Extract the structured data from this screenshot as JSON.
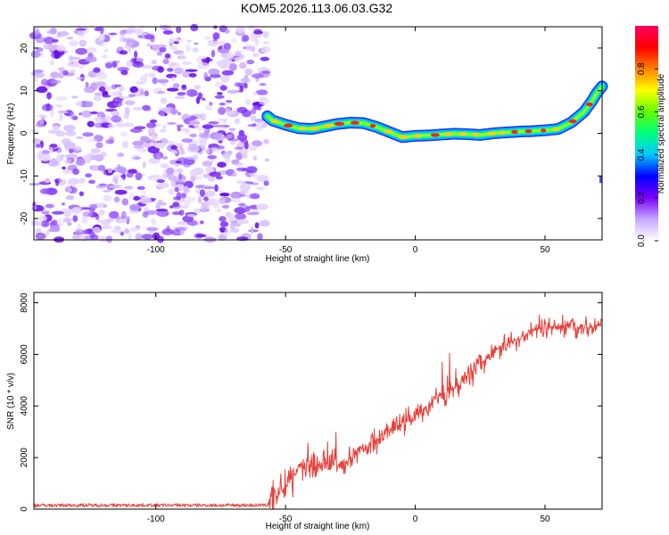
{
  "chart_data": [
    {
      "type": "heatmap",
      "title": "KOM5.2026.113.06.03.G32",
      "xlabel": "Height of straight line (km)",
      "ylabel": "Frequency (Hz)",
      "xlim": [
        -147,
        72
      ],
      "ylim": [
        -25,
        25
      ],
      "xticks": [
        -100,
        -50,
        0,
        50
      ],
      "xtick_labels": [
        "-100",
        "-50",
        "0",
        "50"
      ],
      "yticks": [
        -20,
        -10,
        0,
        10,
        20
      ],
      "ytick_labels": [
        "-20",
        "-10",
        "0",
        "10",
        "20"
      ],
      "noise_region_x": [
        -147,
        -57
      ],
      "ridge": {
        "x": [
          -57,
          -55,
          -50,
          -45,
          -40,
          -35,
          -30,
          -25,
          -20,
          -15,
          -10,
          -5,
          0,
          5,
          10,
          15,
          20,
          25,
          30,
          35,
          40,
          45,
          50,
          55,
          60,
          65,
          68,
          70,
          72
        ],
        "freq": [
          4,
          3,
          2,
          1.2,
          1,
          1.6,
          2.2,
          2.5,
          2.4,
          1.5,
          0.3,
          -0.9,
          -0.6,
          -0.5,
          -0.3,
          -0.1,
          -0.2,
          -0.4,
          0,
          0.2,
          0.4,
          0.5,
          0.7,
          1.0,
          2.5,
          5,
          7.5,
          9.5,
          11
        ]
      },
      "colorbar": {
        "label": "Normalized spectral amplitude",
        "range": [
          0,
          1
        ],
        "ticks": [
          0,
          0.2,
          0.4,
          0.6,
          0.8
        ],
        "tick_labels": [
          "0.0",
          "0.2",
          "0.4",
          "0.6",
          "0.8"
        ],
        "colors": [
          "#ffffff",
          "#c8a8ff",
          "#7a00ff",
          "#0000ff",
          "#00c8ff",
          "#00ff80",
          "#60ff00",
          "#ffff00",
          "#ff8000",
          "#ff0000",
          "#ff0060"
        ]
      },
      "grid": false
    },
    {
      "type": "line",
      "xlabel": "Height of straight line (km)",
      "ylabel": "SNR (10 * v/v)",
      "xlim": [
        -147,
        72
      ],
      "ylim": [
        0,
        8400
      ],
      "xticks": [
        -100,
        -50,
        0,
        50
      ],
      "xtick_labels": [
        "-100",
        "-50",
        "0",
        "50"
      ],
      "yticks": [
        0,
        2000,
        4000,
        6000,
        8000
      ],
      "ytick_labels": [
        "0",
        "2000",
        "4000",
        "6000",
        "8000"
      ],
      "color": "#e8403a",
      "trend": {
        "x": [
          -147,
          -100,
          -60,
          -57,
          -55,
          -50,
          -45,
          -40,
          -35,
          -30,
          -25,
          -20,
          -15,
          -10,
          -5,
          0,
          5,
          10,
          15,
          20,
          25,
          30,
          35,
          40,
          45,
          50,
          55,
          60,
          65,
          70,
          72
        ],
        "snr": [
          150,
          150,
          150,
          150,
          500,
          900,
          1600,
          1600,
          1800,
          1700,
          2000,
          2300,
          2700,
          3100,
          3300,
          3600,
          4000,
          4400,
          4800,
          5200,
          5600,
          6100,
          6400,
          6600,
          6900,
          7100,
          7000,
          7200,
          7000,
          7100,
          7200
        ]
      },
      "grid": false
    }
  ]
}
